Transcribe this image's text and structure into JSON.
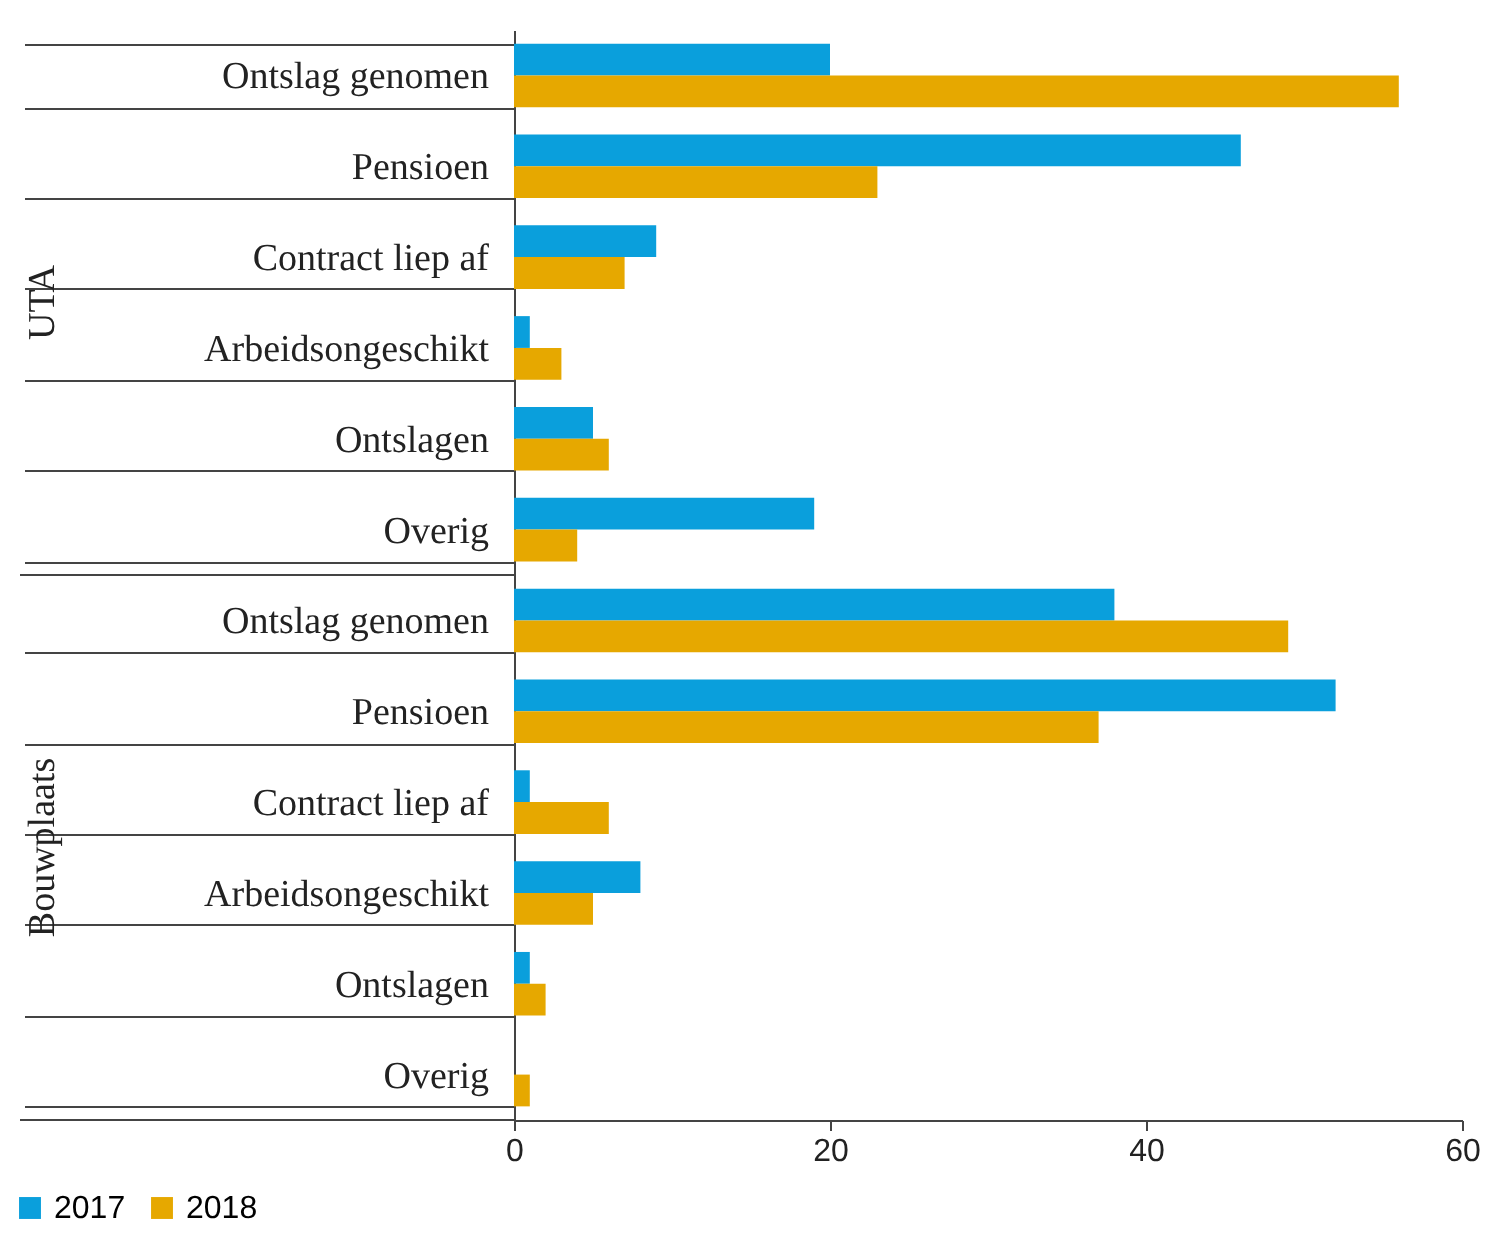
{
  "chart_data": {
    "type": "bar",
    "orientation": "horizontal",
    "categories": [
      "Ontslag genomen",
      "Pensioen",
      "Contract liep af",
      "Arbeidsongeschikt",
      "Ontslagen",
      "Overig",
      "Ontslag genomen",
      "Pensioen",
      "Contract liep af",
      "Arbeidsongeschikt",
      "Ontslagen",
      "Overig"
    ],
    "series": [
      {
        "name": "2017",
        "color": "#0a9fdc",
        "values": [
          20,
          46,
          9,
          1,
          5,
          19,
          38,
          52,
          1,
          8,
          1,
          0
        ]
      },
      {
        "name": "2018",
        "color": "#e6a800",
        "values": [
          56,
          23,
          7,
          3,
          6,
          4,
          49,
          37,
          6,
          5,
          2,
          1
        ]
      }
    ],
    "xlim": [
      0,
      60
    ],
    "xticks": [
      0,
      20,
      40,
      60
    ],
    "grid": false,
    "legend": "bottom left",
    "annotations": [
      "UTA",
      "Bouwplaats"
    ]
  }
}
